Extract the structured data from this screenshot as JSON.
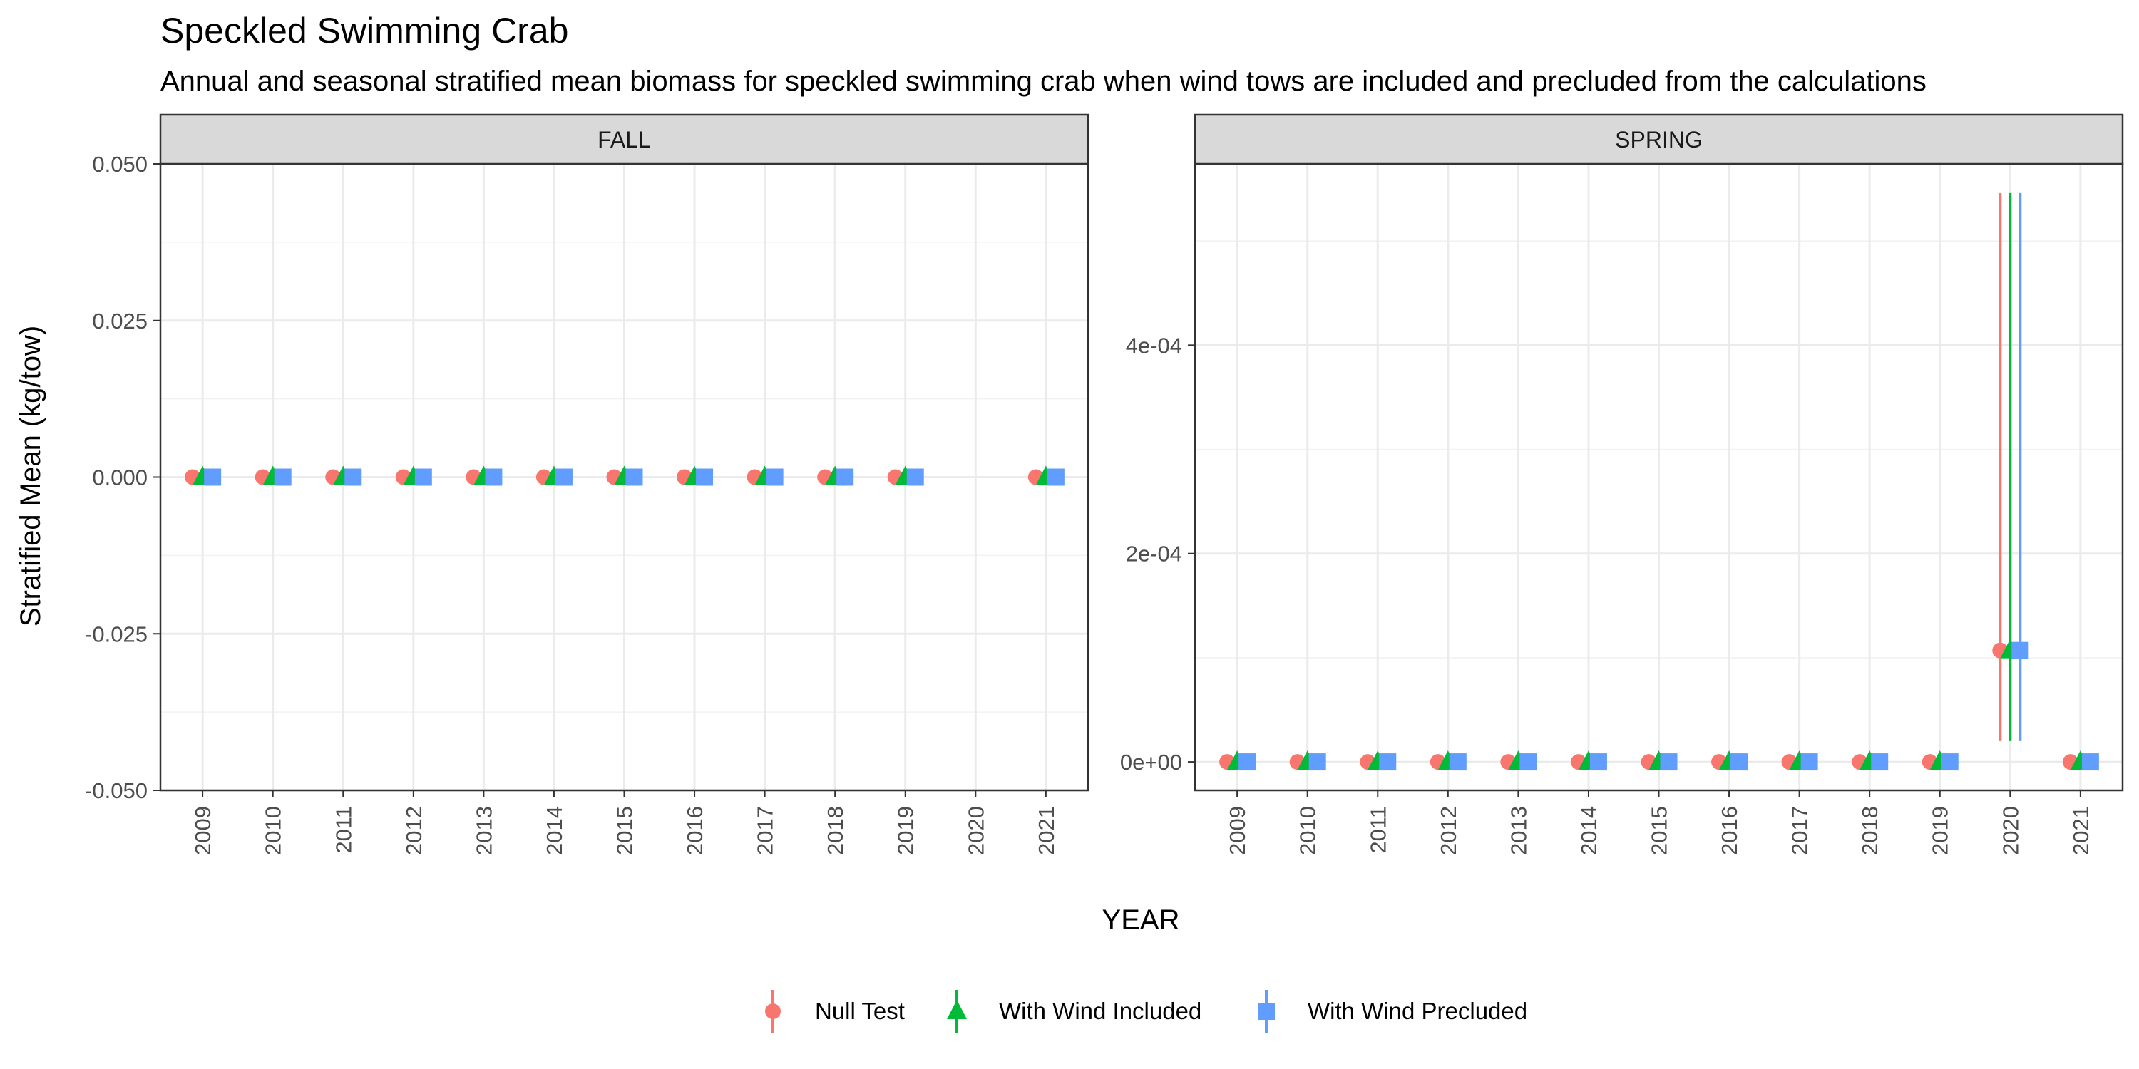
{
  "chart_data": {
    "type": "scatter",
    "title": "Speckled Swimming Crab",
    "subtitle": "Annual and seasonal stratified mean biomass for speckled swimming crab when wind tows are included and precluded from the calculations",
    "xlabel": "YEAR",
    "ylabel": "Stratified Mean (kg/tow)",
    "grid": true,
    "legend_position": "bottom",
    "x_categories": [
      "2009",
      "2010",
      "2011",
      "2012",
      "2013",
      "2014",
      "2015",
      "2016",
      "2017",
      "2018",
      "2019",
      "2020",
      "2021"
    ],
    "series": [
      {
        "name": "Null Test",
        "color": "#F8766D",
        "shape": "circle"
      },
      {
        "name": "With Wind Included",
        "color": "#00BA38",
        "shape": "triangle"
      },
      {
        "name": "With Wind Precluded",
        "color": "#619CFF",
        "shape": "square"
      }
    ],
    "panels": [
      {
        "label": "FALL",
        "ylim": [
          -0.05,
          0.05
        ],
        "yticks": [
          -0.05,
          -0.025,
          0,
          0.025,
          0.05
        ],
        "ytick_labels": [
          "-0.050",
          "-0.025",
          "0.000",
          "0.025",
          "0.050"
        ],
        "data": [
          {
            "series": "Null Test",
            "points": [
              {
                "x": "2009",
                "y": 0
              },
              {
                "x": "2010",
                "y": 0
              },
              {
                "x": "2011",
                "y": 0
              },
              {
                "x": "2012",
                "y": 0
              },
              {
                "x": "2013",
                "y": 0
              },
              {
                "x": "2014",
                "y": 0
              },
              {
                "x": "2015",
                "y": 0
              },
              {
                "x": "2016",
                "y": 0
              },
              {
                "x": "2017",
                "y": 0
              },
              {
                "x": "2018",
                "y": 0
              },
              {
                "x": "2019",
                "y": 0
              },
              {
                "x": "2021",
                "y": 0
              }
            ]
          },
          {
            "series": "With Wind Included",
            "points": [
              {
                "x": "2009",
                "y": 0
              },
              {
                "x": "2010",
                "y": 0
              },
              {
                "x": "2011",
                "y": 0
              },
              {
                "x": "2012",
                "y": 0
              },
              {
                "x": "2013",
                "y": 0
              },
              {
                "x": "2014",
                "y": 0
              },
              {
                "x": "2015",
                "y": 0
              },
              {
                "x": "2016",
                "y": 0
              },
              {
                "x": "2017",
                "y": 0
              },
              {
                "x": "2018",
                "y": 0
              },
              {
                "x": "2019",
                "y": 0
              },
              {
                "x": "2021",
                "y": 0
              }
            ]
          },
          {
            "series": "With Wind Precluded",
            "points": [
              {
                "x": "2009",
                "y": 0
              },
              {
                "x": "2010",
                "y": 0
              },
              {
                "x": "2011",
                "y": 0
              },
              {
                "x": "2012",
                "y": 0
              },
              {
                "x": "2013",
                "y": 0
              },
              {
                "x": "2014",
                "y": 0
              },
              {
                "x": "2015",
                "y": 0
              },
              {
                "x": "2016",
                "y": 0
              },
              {
                "x": "2017",
                "y": 0
              },
              {
                "x": "2018",
                "y": 0
              },
              {
                "x": "2019",
                "y": 0
              },
              {
                "x": "2021",
                "y": 0
              }
            ]
          }
        ]
      },
      {
        "label": "SPRING",
        "ylim": [
          -2.73e-05,
          0.000574
        ],
        "yticks": [
          0,
          0.0002,
          0.0004
        ],
        "ytick_labels": [
          "0e+00",
          "2e-04",
          "4e-04"
        ],
        "data": [
          {
            "series": "Null Test",
            "points": [
              {
                "x": "2009",
                "y": 0
              },
              {
                "x": "2010",
                "y": 0
              },
              {
                "x": "2011",
                "y": 0
              },
              {
                "x": "2012",
                "y": 0
              },
              {
                "x": "2013",
                "y": 0
              },
              {
                "x": "2014",
                "y": 0
              },
              {
                "x": "2015",
                "y": 0
              },
              {
                "x": "2016",
                "y": 0
              },
              {
                "x": "2017",
                "y": 0
              },
              {
                "x": "2018",
                "y": 0
              },
              {
                "x": "2019",
                "y": 0
              },
              {
                "x": "2020",
                "y": 0.000107,
                "ymin": 2e-05,
                "ymax": 0.000546
              },
              {
                "x": "2021",
                "y": 0
              }
            ]
          },
          {
            "series": "With Wind Included",
            "points": [
              {
                "x": "2009",
                "y": 0
              },
              {
                "x": "2010",
                "y": 0
              },
              {
                "x": "2011",
                "y": 0
              },
              {
                "x": "2012",
                "y": 0
              },
              {
                "x": "2013",
                "y": 0
              },
              {
                "x": "2014",
                "y": 0
              },
              {
                "x": "2015",
                "y": 0
              },
              {
                "x": "2016",
                "y": 0
              },
              {
                "x": "2017",
                "y": 0
              },
              {
                "x": "2018",
                "y": 0
              },
              {
                "x": "2019",
                "y": 0
              },
              {
                "x": "2020",
                "y": 0.000107,
                "ymin": 2e-05,
                "ymax": 0.000546
              },
              {
                "x": "2021",
                "y": 0
              }
            ]
          },
          {
            "series": "With Wind Precluded",
            "points": [
              {
                "x": "2009",
                "y": 0
              },
              {
                "x": "2010",
                "y": 0
              },
              {
                "x": "2011",
                "y": 0
              },
              {
                "x": "2012",
                "y": 0
              },
              {
                "x": "2013",
                "y": 0
              },
              {
                "x": "2014",
                "y": 0
              },
              {
                "x": "2015",
                "y": 0
              },
              {
                "x": "2016",
                "y": 0
              },
              {
                "x": "2017",
                "y": 0
              },
              {
                "x": "2018",
                "y": 0
              },
              {
                "x": "2019",
                "y": 0
              },
              {
                "x": "2020",
                "y": 0.000107,
                "ymin": 2e-05,
                "ymax": 0.000546
              },
              {
                "x": "2021",
                "y": 0
              }
            ]
          }
        ]
      }
    ]
  }
}
